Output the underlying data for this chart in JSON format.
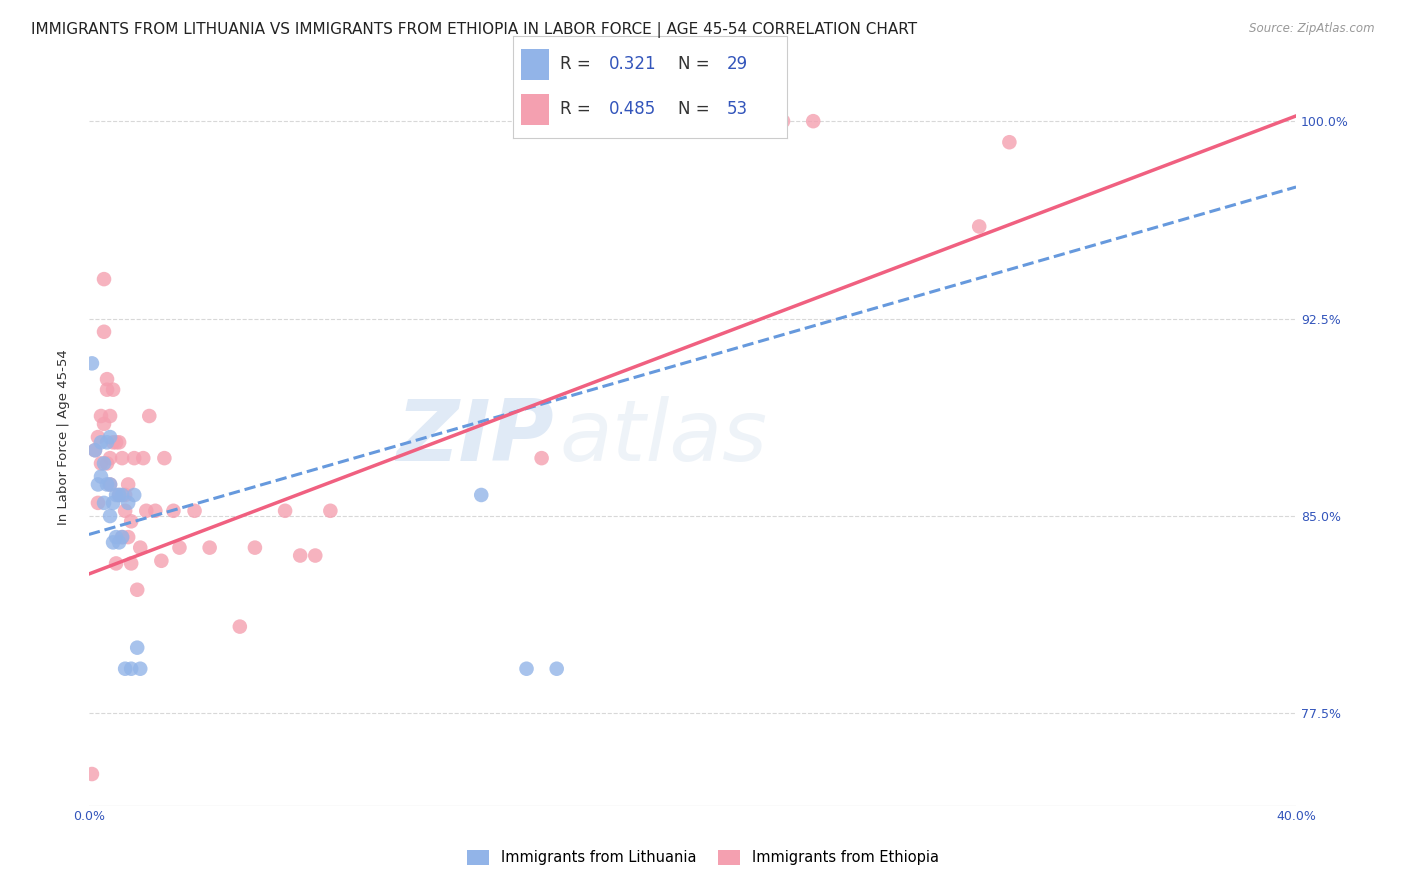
{
  "title": "IMMIGRANTS FROM LITHUANIA VS IMMIGRANTS FROM ETHIOPIA IN LABOR FORCE | AGE 45-54 CORRELATION CHART",
  "source": "Source: ZipAtlas.com",
  "ylabel": "In Labor Force | Age 45-54",
  "xlim": [
    0.0,
    0.4
  ],
  "ylim": [
    0.74,
    1.02
  ],
  "ytick_positions": [
    0.775,
    0.85,
    0.925,
    1.0
  ],
  "ytick_labels": [
    "77.5%",
    "85.0%",
    "92.5%",
    "100.0%"
  ],
  "R_lithuania": 0.321,
  "N_lithuania": 29,
  "R_ethiopia": 0.485,
  "N_ethiopia": 53,
  "color_lithuania": "#92b4e8",
  "color_ethiopia": "#f4a0b0",
  "color_trendline_lithuania": "#6699dd",
  "color_trendline_ethiopia": "#f06080",
  "watermark_zip": "ZIP",
  "watermark_atlas": "atlas",
  "trendline_lithuania": [
    [
      0.0,
      0.843
    ],
    [
      0.4,
      0.975
    ]
  ],
  "trendline_ethiopia": [
    [
      0.0,
      0.828
    ],
    [
      0.4,
      1.002
    ]
  ],
  "lithuania_x": [
    0.001,
    0.002,
    0.003,
    0.004,
    0.004,
    0.005,
    0.005,
    0.006,
    0.006,
    0.007,
    0.007,
    0.007,
    0.008,
    0.008,
    0.009,
    0.009,
    0.01,
    0.01,
    0.011,
    0.011,
    0.012,
    0.013,
    0.014,
    0.015,
    0.016,
    0.017,
    0.13,
    0.145,
    0.155
  ],
  "lithuania_y": [
    0.908,
    0.875,
    0.862,
    0.878,
    0.865,
    0.87,
    0.855,
    0.878,
    0.862,
    0.88,
    0.862,
    0.85,
    0.855,
    0.84,
    0.858,
    0.842,
    0.858,
    0.84,
    0.842,
    0.858,
    0.792,
    0.855,
    0.792,
    0.858,
    0.8,
    0.792,
    0.858,
    0.792,
    0.792
  ],
  "ethiopia_x": [
    0.001,
    0.002,
    0.003,
    0.003,
    0.004,
    0.004,
    0.005,
    0.005,
    0.005,
    0.006,
    0.006,
    0.006,
    0.007,
    0.007,
    0.007,
    0.008,
    0.008,
    0.009,
    0.009,
    0.01,
    0.01,
    0.011,
    0.011,
    0.012,
    0.012,
    0.013,
    0.013,
    0.014,
    0.014,
    0.015,
    0.016,
    0.017,
    0.018,
    0.019,
    0.02,
    0.022,
    0.024,
    0.025,
    0.028,
    0.03,
    0.035,
    0.04,
    0.05,
    0.055,
    0.065,
    0.07,
    0.075,
    0.08,
    0.15,
    0.23,
    0.24,
    0.295,
    0.305
  ],
  "ethiopia_y": [
    0.752,
    0.875,
    0.855,
    0.88,
    0.87,
    0.888,
    0.885,
    0.92,
    0.94,
    0.898,
    0.902,
    0.87,
    0.862,
    0.872,
    0.888,
    0.878,
    0.898,
    0.878,
    0.832,
    0.858,
    0.878,
    0.872,
    0.842,
    0.858,
    0.852,
    0.842,
    0.862,
    0.832,
    0.848,
    0.872,
    0.822,
    0.838,
    0.872,
    0.852,
    0.888,
    0.852,
    0.833,
    0.872,
    0.852,
    0.838,
    0.852,
    0.838,
    0.808,
    0.838,
    0.852,
    0.835,
    0.835,
    0.852,
    0.872,
    1.0,
    1.0,
    0.96,
    0.992
  ],
  "background_color": "#ffffff",
  "grid_color": "#d8d8d8",
  "title_fontsize": 11,
  "axis_label_fontsize": 9.5,
  "tick_label_fontsize": 9,
  "legend_fontsize": 12
}
